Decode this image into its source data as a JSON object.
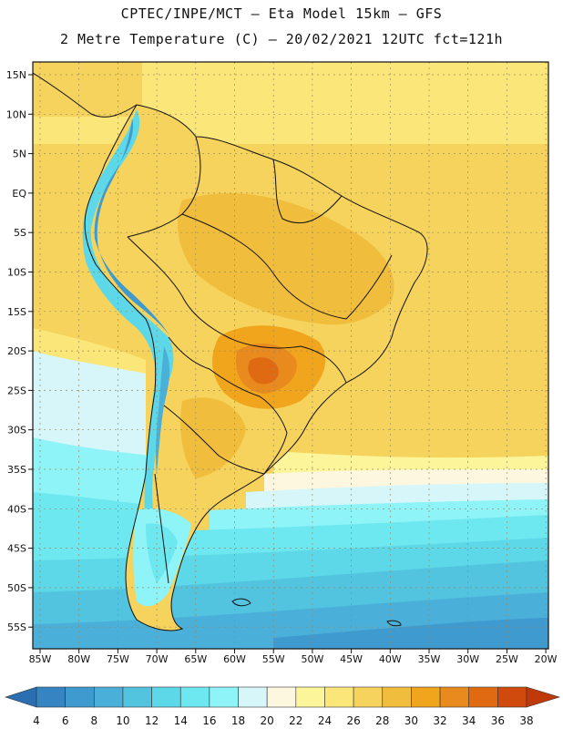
{
  "header": {
    "line1": "CPTEC/INPE/MCT –  Eta Model 15km – GFS",
    "line2": "2 Metre Temperature (C) – 20/02/2021 12UTC fct=121h"
  },
  "map": {
    "lat_labels": [
      "15N",
      "10N",
      "5N",
      "EQ",
      "5S",
      "10S",
      "15S",
      "20S",
      "25S",
      "30S",
      "35S",
      "40S",
      "45S",
      "50S",
      "55S"
    ],
    "lon_labels": [
      "85W",
      "80W",
      "75W",
      "70W",
      "65W",
      "60W",
      "55W",
      "50W",
      "45W",
      "40W",
      "35W",
      "30W",
      "25W",
      "20W"
    ]
  },
  "legend": {
    "values": [
      "4",
      "6",
      "8",
      "10",
      "12",
      "14",
      "16",
      "18",
      "20",
      "22",
      "24",
      "26",
      "28",
      "30",
      "32",
      "34",
      "36",
      "38"
    ],
    "colors": [
      "#2b6fb3",
      "#3685c2",
      "#3f9acf",
      "#4bb0d9",
      "#52c4e0",
      "#5dd8e8",
      "#6ee8f0",
      "#8ef4f8",
      "#d6f6fa",
      "#fdf7e0",
      "#fdf59a",
      "#fbe67a",
      "#f5d35c",
      "#f0be3c",
      "#f0a51c",
      "#e88a1e",
      "#e06a12",
      "#d04a0e",
      "#c0390a"
    ]
  }
}
